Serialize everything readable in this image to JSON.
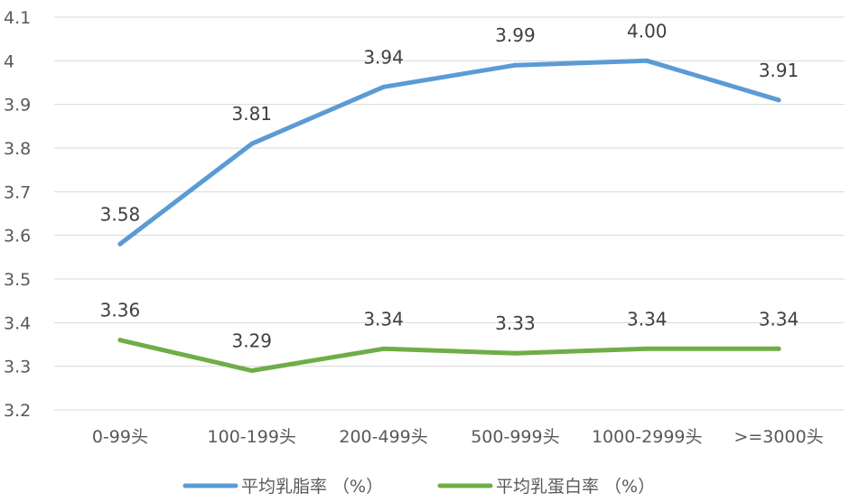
{
  "chart_data": {
    "type": "line",
    "categories": [
      "0-99头",
      "100-199头",
      "200-499头",
      "500-999头",
      "1000-2999头",
      ">=3000头"
    ],
    "series": [
      {
        "name": "平均乳脂率 （%）",
        "values": [
          3.58,
          3.81,
          3.94,
          3.99,
          4.0,
          3.91
        ],
        "labels": [
          "3.58",
          "3.81",
          "3.94",
          "3.99",
          "4.00",
          "3.91"
        ],
        "color": "#5b9bd5"
      },
      {
        "name": "平均乳蛋白率 （%）",
        "values": [
          3.36,
          3.29,
          3.34,
          3.33,
          3.34,
          3.34
        ],
        "labels": [
          "3.36",
          "3.29",
          "3.34",
          "3.33",
          "3.34",
          "3.34"
        ],
        "color": "#70ad47"
      }
    ],
    "y_ticks": [
      "3.2",
      "3.3",
      "3.4",
      "3.5",
      "3.6",
      "3.7",
      "3.8",
      "3.9",
      "4",
      "4.1"
    ],
    "ylim": [
      3.2,
      4.1
    ],
    "grid": true,
    "legend_position": "bottom",
    "title": "",
    "xlabel": "",
    "ylabel": ""
  }
}
